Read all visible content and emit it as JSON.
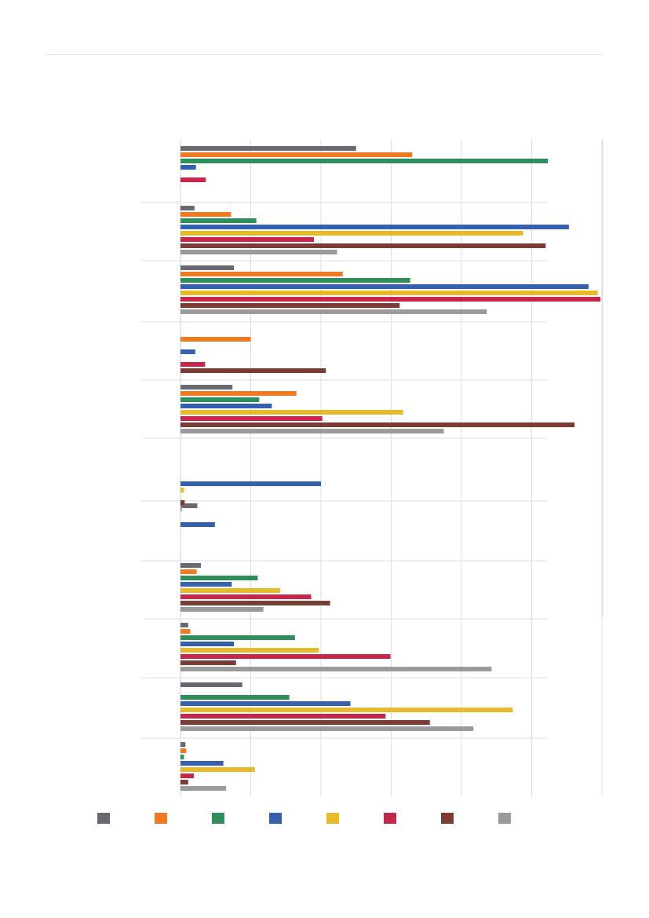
{
  "chart_data": {
    "type": "bar",
    "orientation": "horizontal",
    "title": "",
    "xlabel": "",
    "ylabel": "",
    "xlim": [
      0,
      6
    ],
    "grid": true,
    "legend_position": "bottom",
    "colors": [
      "#696971",
      "#f07a22",
      "#2e8f5c",
      "#3560ad",
      "#e5ba2b",
      "#c6264a",
      "#7a3c33",
      "#9a9a9a"
    ],
    "categories": [
      "",
      "",
      "",
      "",
      "",
      "",
      "",
      "",
      "",
      "",
      ""
    ],
    "series": [
      {
        "values": [
          2.5,
          0.2,
          0.76,
          0,
          0.74,
          0,
          0.24,
          0.29,
          0.11,
          0.88,
          0.07
        ]
      },
      {
        "values": [
          3.3,
          0.72,
          2.31,
          1.0,
          1.65,
          0,
          0,
          0.23,
          0.14,
          0,
          0.08
        ]
      },
      {
        "values": [
          5.23,
          1.08,
          3.27,
          0,
          1.12,
          0,
          0,
          1.1,
          1.63,
          1.55,
          0.05
        ]
      },
      {
        "values": [
          0.22,
          5.53,
          5.81,
          0.21,
          1.3,
          2.0,
          0.49,
          0.73,
          0.76,
          2.42,
          0.61
        ]
      },
      {
        "values": [
          0,
          4.88,
          5.94,
          0,
          3.17,
          0.05,
          0,
          1.42,
          1.97,
          4.73,
          1.06
        ]
      },
      {
        "values": [
          0.36,
          1.9,
          5.98,
          0.35,
          2.02,
          0,
          0,
          1.86,
          2.99,
          2.92,
          0.19
        ]
      },
      {
        "values": [
          0,
          5.2,
          3.12,
          2.07,
          5.61,
          0.06,
          0,
          2.13,
          0.79,
          3.55,
          0.11
        ]
      },
      {
        "values": [
          0,
          2.23,
          4.36,
          0,
          3.75,
          0.02,
          0,
          1.18,
          4.43,
          4.17,
          0.65
        ]
      }
    ]
  }
}
